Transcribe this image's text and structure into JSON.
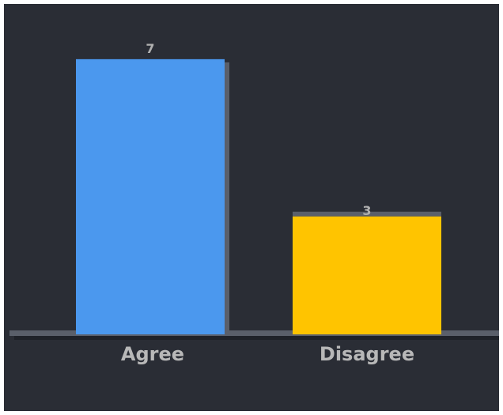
{
  "chart_data": {
    "type": "bar",
    "title": "",
    "xlabel": "",
    "ylabel": "",
    "categories": [
      "Agree",
      "Disagree"
    ],
    "values": [
      7,
      3
    ],
    "ylim": [
      0,
      7.5
    ],
    "grid": false,
    "legend": "none",
    "value_labels": [
      "7",
      "3"
    ],
    "colors": [
      "#4b98ee",
      "#ffc400"
    ],
    "accent_colors": {
      "background": "#2a2d35",
      "baseline": "#5a5f6a",
      "text": "#b8b8b8"
    }
  }
}
